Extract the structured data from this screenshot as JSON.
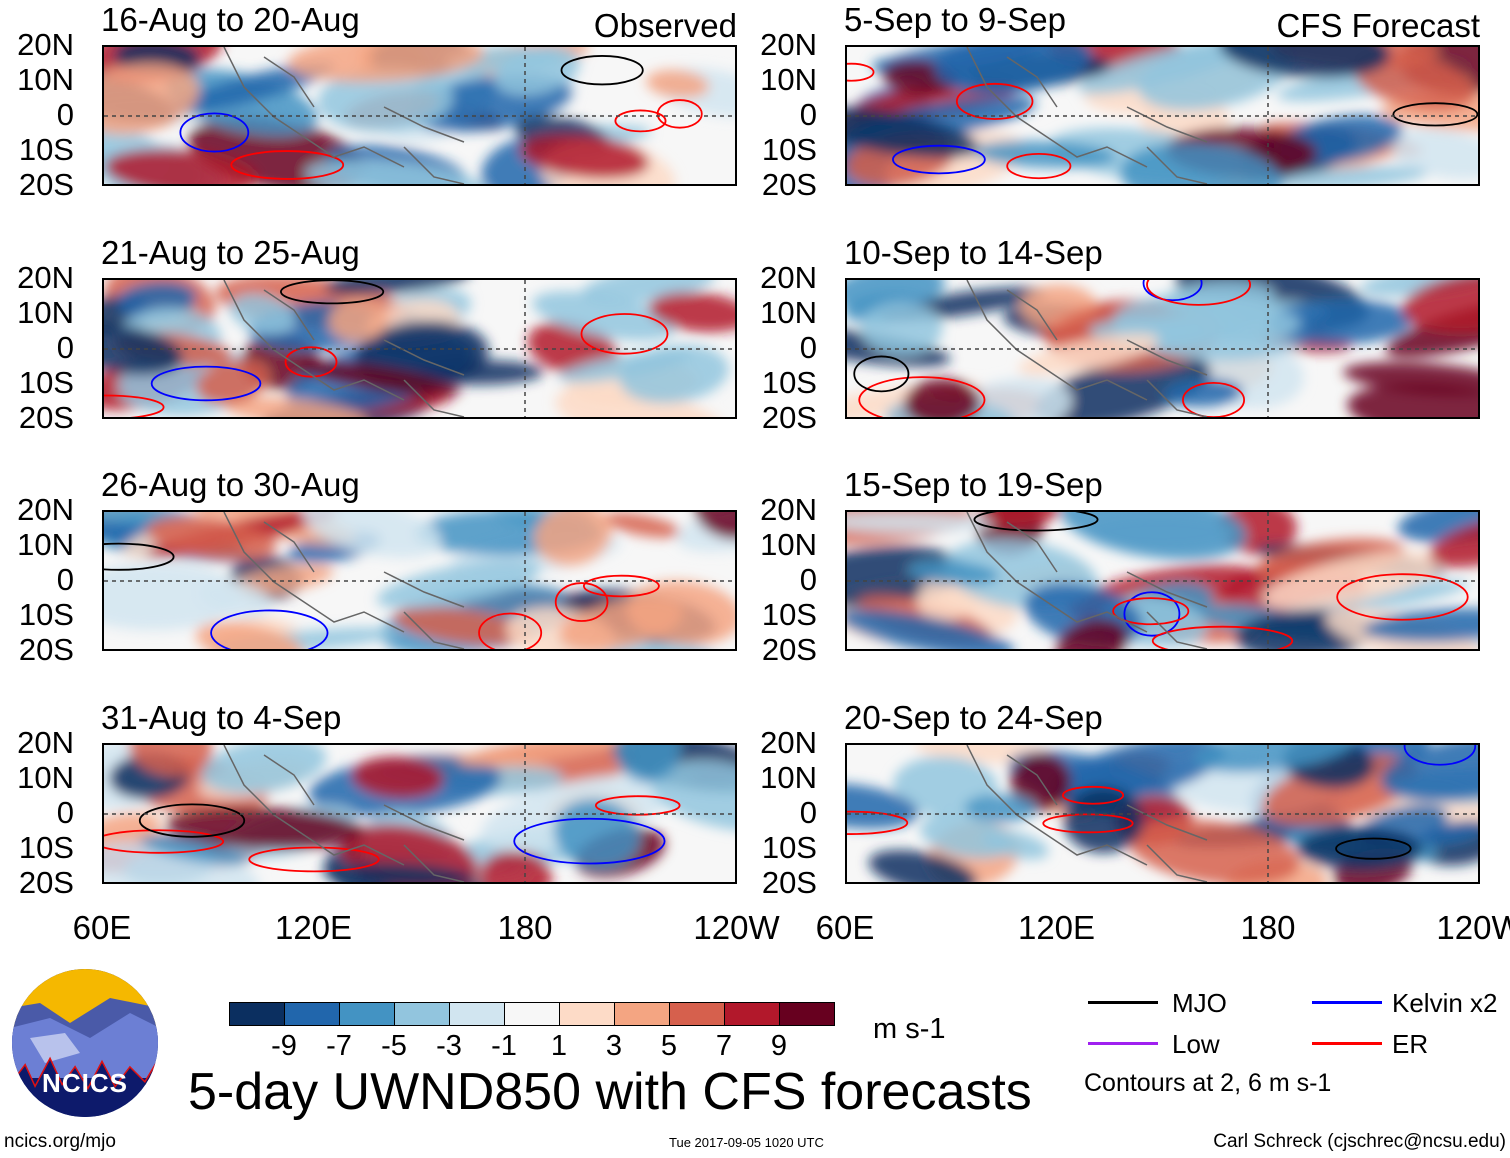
{
  "panels": [
    {
      "title": "16-Aug to 20-Aug",
      "tag": "Observed"
    },
    {
      "title": "21-Aug to 25-Aug"
    },
    {
      "title": "26-Aug to 30-Aug"
    },
    {
      "title": "31-Aug to 4-Sep"
    },
    {
      "title": "5-Sep to 9-Sep",
      "tag": "CFS Forecast"
    },
    {
      "title": "10-Sep to 14-Sep"
    },
    {
      "title": "15-Sep to 19-Sep"
    },
    {
      "title": "20-Sep to 24-Sep"
    }
  ],
  "lat_labels": [
    "20N",
    "10N",
    "0",
    "10S",
    "20S"
  ],
  "lon_labels": [
    "60E",
    "120E",
    "180",
    "120W"
  ],
  "colorbar": {
    "colors": [
      "#0b2f60",
      "#2166ac",
      "#4393c3",
      "#92c5de",
      "#d1e5f0",
      "#f7f7f7",
      "#fddbc7",
      "#f4a582",
      "#d6604d",
      "#b2182b",
      "#67001f"
    ],
    "labels": [
      "-9",
      "-7",
      "-5",
      "-3",
      "-1",
      "1",
      "3",
      "5",
      "7",
      "9"
    ],
    "units": "m s-1"
  },
  "legend": {
    "items": [
      {
        "label": "MJO",
        "color": "#000000"
      },
      {
        "label": "Kelvin x2",
        "color": "#0000ff"
      },
      {
        "label": "Low",
        "color": "#a020f0"
      },
      {
        "label": "ER",
        "color": "#ff0000"
      }
    ],
    "note": "Contours at 2, 6 m s-1"
  },
  "logo_text": "NCICS",
  "main_title": "5-day UWND850 with CFS forecasts",
  "footer": {
    "url": "ncics.org/mjo",
    "timestamp": "Tue 2017-09-05 1020 UTC",
    "credit": "Carl Schreck (cjschrec@ncsu.edu)"
  }
}
